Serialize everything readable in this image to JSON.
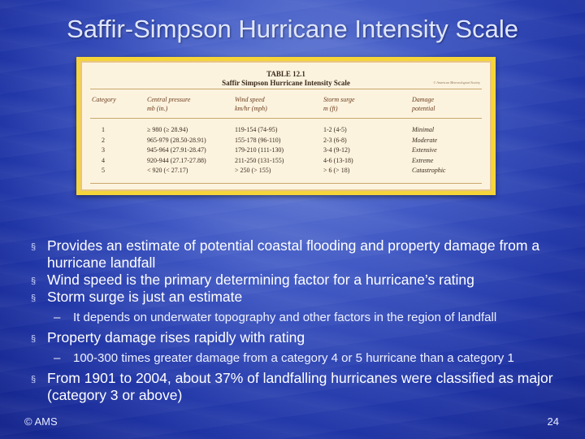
{
  "slide": {
    "title": "Saffir-Simpson Hurricane Intensity Scale",
    "footer_left": "© AMS",
    "page_number": "24"
  },
  "table": {
    "number": "TABLE 12.1",
    "name": "Saffir Simpson Hurricane Intensity Scale",
    "source": "© American Meteorological Society",
    "headers": {
      "category": "Category",
      "pressure": [
        "Central pressure",
        "mb (in.)"
      ],
      "wind": [
        "Wind speed",
        "km/hr (mph)"
      ],
      "surge": [
        "Storm surge",
        "m (ft)"
      ],
      "damage": [
        "Damage",
        "potential"
      ]
    },
    "rows": [
      {
        "category": "1",
        "pressure": "≥ 980 (≥ 28.94)",
        "wind": "119-154 (74-95)",
        "surge": "1-2 (4-5)",
        "damage": "Minimal"
      },
      {
        "category": "2",
        "pressure": "965-979 (28.50-28.91)",
        "wind": "155-178 (96-110)",
        "surge": "2-3 (6-8)",
        "damage": "Moderate"
      },
      {
        "category": "3",
        "pressure": "945-964 (27.91-28.47)",
        "wind": "179-210 (111-130)",
        "surge": "3-4 (9-12)",
        "damage": "Extensive"
      },
      {
        "category": "4",
        "pressure": "920-944 (27.17-27.88)",
        "wind": "211-250 (131-155)",
        "surge": "4-6 (13-18)",
        "damage": "Extreme"
      },
      {
        "category": "5",
        "pressure": "< 920 (< 27.17)",
        "wind": "> 250 (> 155)",
        "surge": "> 6 (> 18)",
        "damage": "Catastrophic"
      }
    ]
  },
  "bullets": {
    "marker": "§",
    "sub_marker": "–",
    "b1": "Provides an estimate of potential coastal flooding and property damage from a hurricane landfall",
    "b2": "Wind speed is the primary determining factor for a hurricane’s rating",
    "b3": "Storm surge is just an estimate",
    "b3_sub": "It depends on underwater topography and other factors in the region of landfall",
    "b4": "Property damage rises rapidly with rating",
    "b4_sub": "100-300 times greater damage from a category 4 or 5 hurricane than a category 1",
    "b5": "From 1901 to 2004, about 37% of landfalling hurricanes were classified as major (category 3 or above)"
  }
}
